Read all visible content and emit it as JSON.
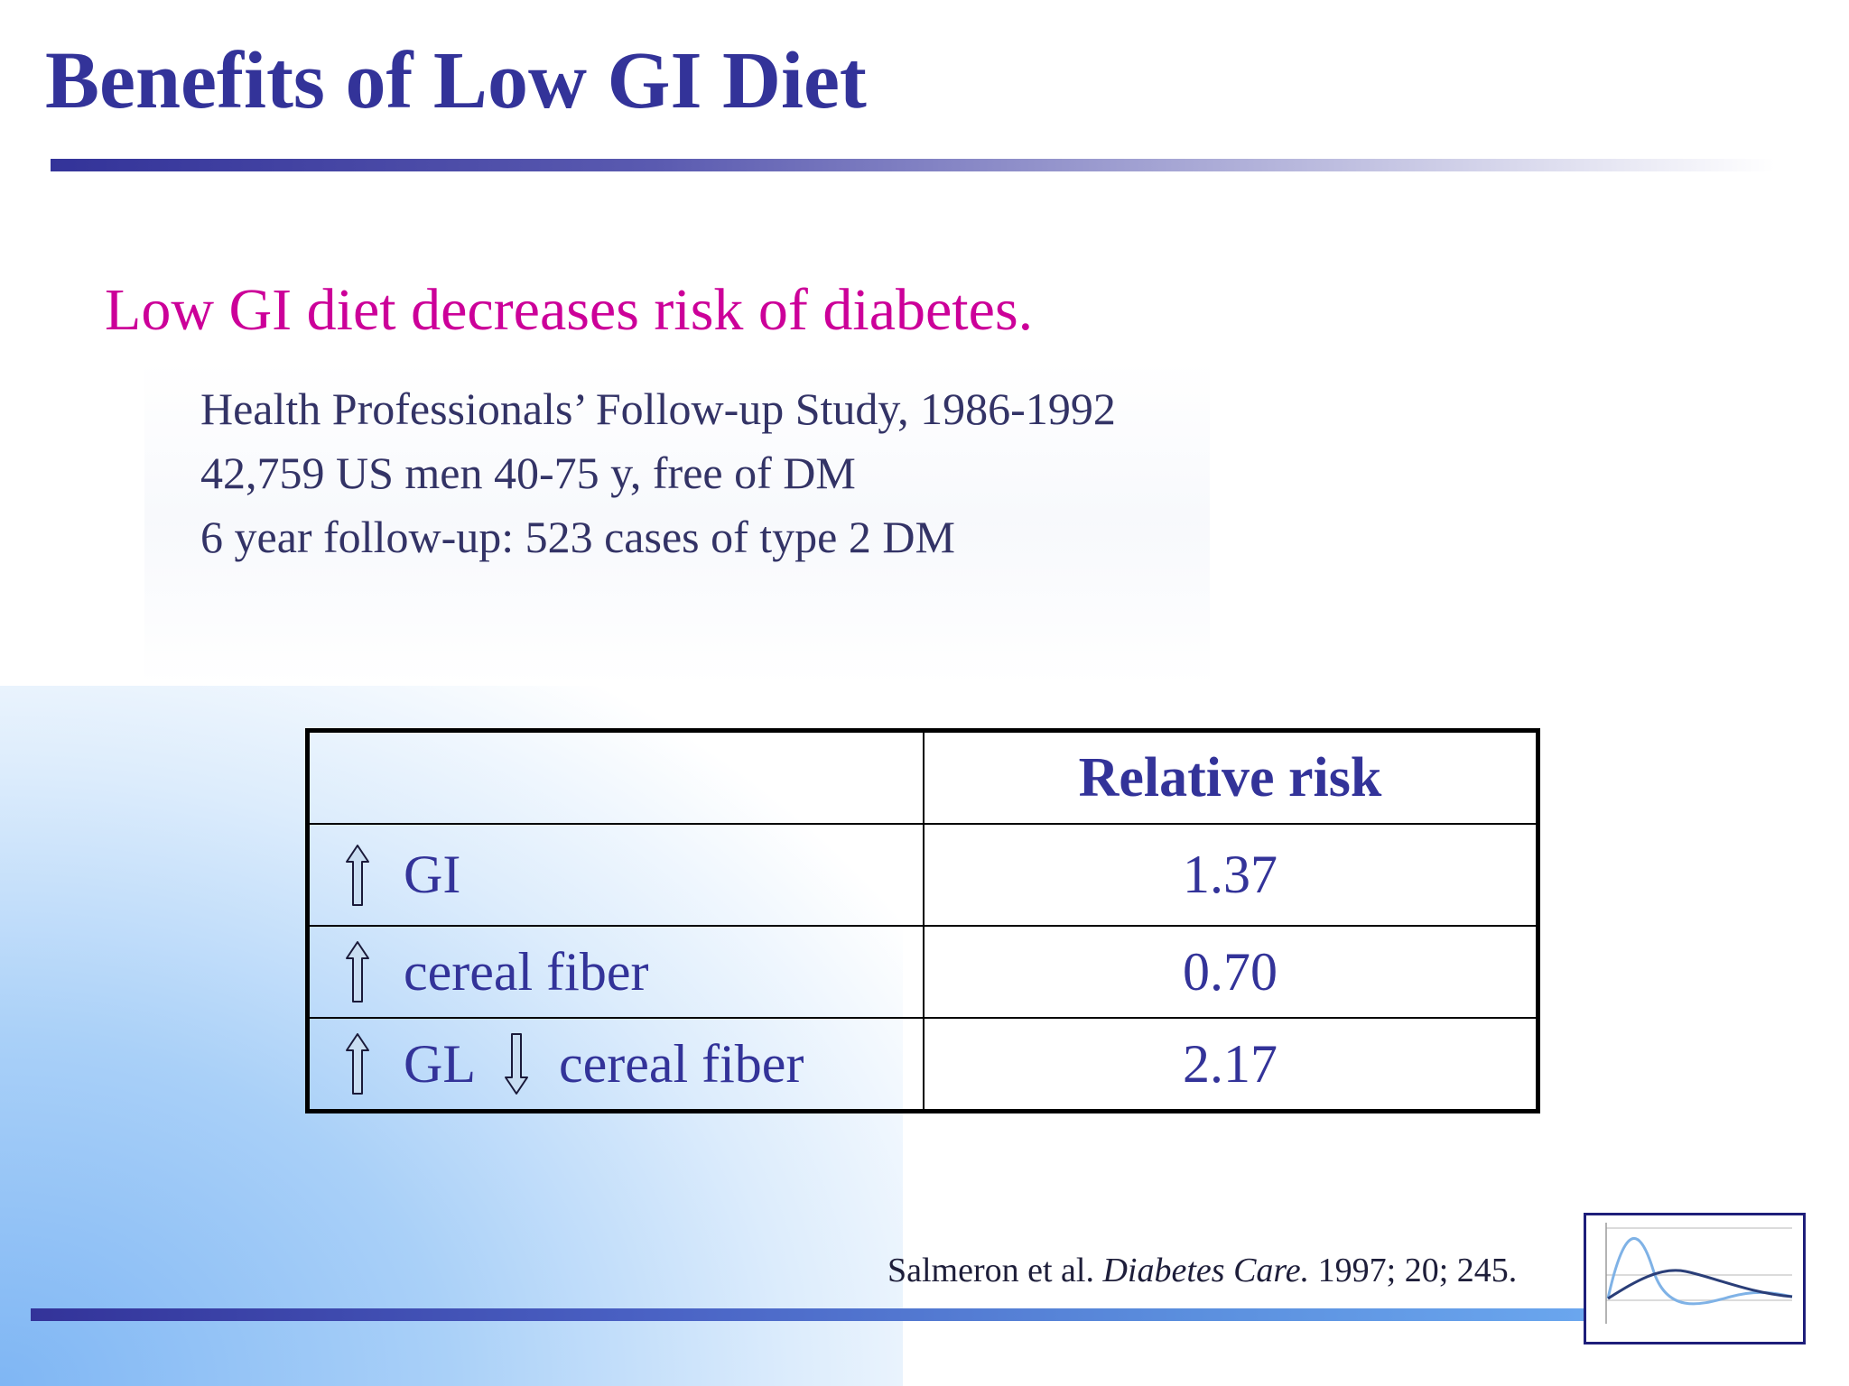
{
  "slide": {
    "title": "Benefits of Low GI Diet",
    "subtitle": "Low GI diet decreases risk of diabetes.",
    "study_lines": [
      "Health Professionals’ Follow-up Study, 1986-1992",
      "42,759 US men 40-75 y, free of DM",
      "6 year follow-up: 523 cases of type 2 DM"
    ]
  },
  "table": {
    "header": {
      "factor": "",
      "value": "Relative risk"
    },
    "rows": [
      {
        "arrow1": "up-arrow-icon",
        "label1": "GI",
        "value": "1.37"
      },
      {
        "arrow1": "up-arrow-icon",
        "label1": "cereal fiber",
        "value": "0.70"
      },
      {
        "arrow1": "up-arrow-icon",
        "label1": "GL",
        "arrow2": "down-arrow-icon",
        "label2": "cereal fiber",
        "value": "2.17"
      }
    ]
  },
  "citation": {
    "authors": "Salmeron et al.",
    "journal": "Diabetes Care.",
    "details": "1997; 20; 245."
  },
  "colors": {
    "title": "#333399",
    "subtitle": "#cc0099",
    "body_text": "#333366",
    "arrow_fill": "#c9def2"
  },
  "logo": {
    "icon": "glycemic-curve-logo-icon"
  }
}
